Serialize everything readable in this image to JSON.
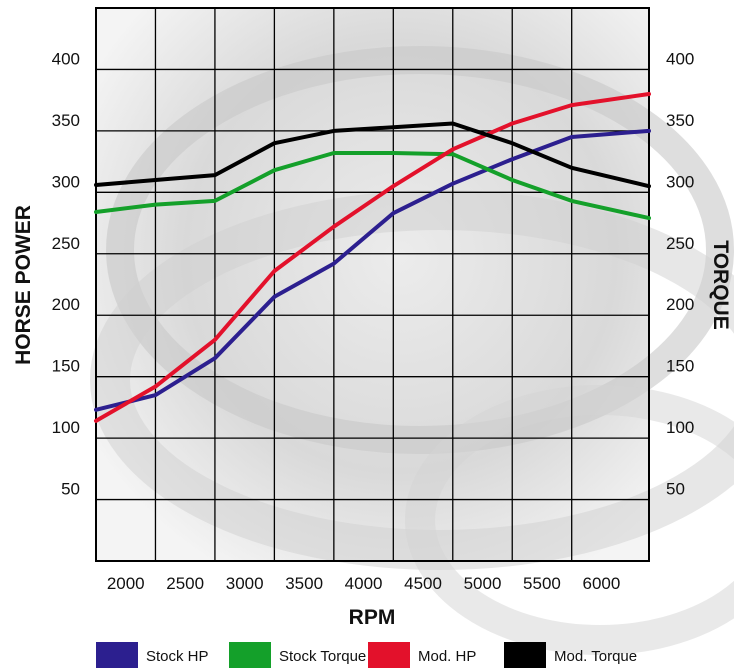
{
  "chart_data": {
    "type": "line",
    "xlabel": "RPM",
    "ylabel_left": "HORSE POWER",
    "ylabel_right": "TORQUE",
    "x_ticks": [
      2000,
      2500,
      3000,
      3500,
      4000,
      4500,
      5000,
      5500,
      6000
    ],
    "y_ticks_left": [
      50,
      100,
      150,
      200,
      250,
      300,
      350,
      400
    ],
    "y_ticks_right": [
      50,
      100,
      150,
      200,
      250,
      300,
      350,
      400
    ],
    "xlim": [
      1750,
      6400
    ],
    "ylim": [
      0,
      450
    ],
    "grid": true,
    "legend_position": "bottom",
    "x": [
      1750,
      2250,
      2750,
      3250,
      3750,
      4250,
      4750,
      5250,
      5750,
      6400
    ],
    "series": [
      {
        "name": "Stock HP",
        "color": "#2c1f8f",
        "values": [
          123,
          135,
          165,
          215,
          242,
          283,
          307,
          327,
          345,
          350
        ]
      },
      {
        "name": "Stock Torque",
        "color": "#14a02a",
        "values": [
          284,
          290,
          293,
          318,
          332,
          332,
          331,
          310,
          293,
          279
        ]
      },
      {
        "name": "Mod. HP",
        "color": "#e3112b",
        "values": [
          114,
          142,
          180,
          236,
          272,
          305,
          335,
          356,
          371,
          380
        ]
      },
      {
        "name": "Mod. Torque",
        "color": "#000000",
        "values": [
          306,
          310,
          314,
          340,
          350,
          353,
          356,
          340,
          320,
          305
        ]
      }
    ]
  }
}
